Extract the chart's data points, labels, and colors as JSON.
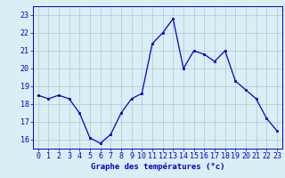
{
  "hours": [
    0,
    1,
    2,
    3,
    4,
    5,
    6,
    7,
    8,
    9,
    10,
    11,
    12,
    13,
    14,
    15,
    16,
    17,
    18,
    19,
    20,
    21,
    22,
    23
  ],
  "temps": [
    18.5,
    18.3,
    18.5,
    18.3,
    17.5,
    16.1,
    15.8,
    16.3,
    17.5,
    18.3,
    18.6,
    21.4,
    22.0,
    22.8,
    20.0,
    21.0,
    20.8,
    20.4,
    21.0,
    19.3,
    18.8,
    18.3,
    17.2,
    16.5
  ],
  "line_color": "#0000cc",
  "marker": "s",
  "markersize": 2.0,
  "linewidth": 0.9,
  "xlabel": "Graphe des températures (°c)",
  "ylabel_ticks": [
    16,
    17,
    18,
    19,
    20,
    21,
    22,
    23
  ],
  "ylim": [
    15.5,
    23.5
  ],
  "xlim": [
    -0.5,
    23.5
  ],
  "bg_color": "#d9eff5",
  "grid_color": "#aac8d4",
  "axis_color": "#0000cc",
  "tick_color": "#0000cc",
  "label_color": "#0000cc",
  "xlabel_fontsize": 6.5,
  "tick_fontsize": 6.0
}
